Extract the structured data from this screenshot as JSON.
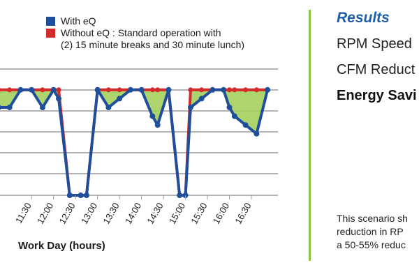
{
  "legend": {
    "with_label": "With eQ",
    "without_label": "Without eQ : Standard operation with\n(2) 15 minute breaks and 30 minute lunch)"
  },
  "colors": {
    "with": "#1f4e9b",
    "without": "#d42a2a",
    "savings_fill": "#a5cf5d",
    "divider": "#8cc63f",
    "title": "#1f5fa8"
  },
  "chart_data": {
    "type": "line",
    "title": "",
    "xlabel": "Work Day (hours)",
    "ylabel": "",
    "x_ticks": [
      "11:30",
      "12:00",
      "12:30",
      "13:00",
      "13:30",
      "14:00",
      "14:30",
      "15:00",
      "15:30",
      "16:00",
      "16:30"
    ],
    "x_range": [
      "10:45",
      "16:50"
    ],
    "y_range": [
      0,
      6
    ],
    "grid": "horizontal",
    "x": [
      "10:45",
      "11:00",
      "11:15",
      "11:30",
      "11:45",
      "12:00",
      "12:07",
      "12:22",
      "12:37",
      "12:45",
      "13:00",
      "13:15",
      "13:30",
      "13:45",
      "14:00",
      "14:15",
      "14:22",
      "14:37",
      "14:52",
      "15:00",
      "15:07",
      "15:22",
      "15:37",
      "15:52",
      "16:00",
      "16:07",
      "16:22",
      "16:37",
      "16:52"
    ],
    "series": [
      {
        "name": "With eQ",
        "values": [
          5.0,
          5.0,
          6.0,
          6.0,
          5.0,
          6.0,
          5.5,
          0.0,
          0.0,
          0.0,
          6.0,
          5.0,
          5.5,
          6.0,
          6.0,
          4.5,
          4.0,
          6.0,
          0.0,
          0.0,
          5.0,
          5.5,
          6.0,
          6.0,
          5.0,
          4.5,
          4.0,
          3.5,
          6.0
        ]
      },
      {
        "name": "Without eQ : Standard operation with (2) 15 minute breaks and 30 minute lunch)",
        "values": [
          6,
          6,
          6,
          6,
          6,
          6,
          6,
          0,
          0,
          0,
          6,
          6,
          6,
          6,
          6,
          6,
          6,
          6,
          0,
          0,
          6,
          6,
          6,
          6,
          6,
          6,
          6,
          6,
          6
        ]
      }
    ]
  },
  "results": {
    "title": "Results",
    "items": [
      "RPM Speed",
      "CFM Reduct",
      "Energy Savi"
    ],
    "scenario": [
      "This scenario sh",
      "reduction in RP",
      "a 50-55% reduc"
    ]
  }
}
